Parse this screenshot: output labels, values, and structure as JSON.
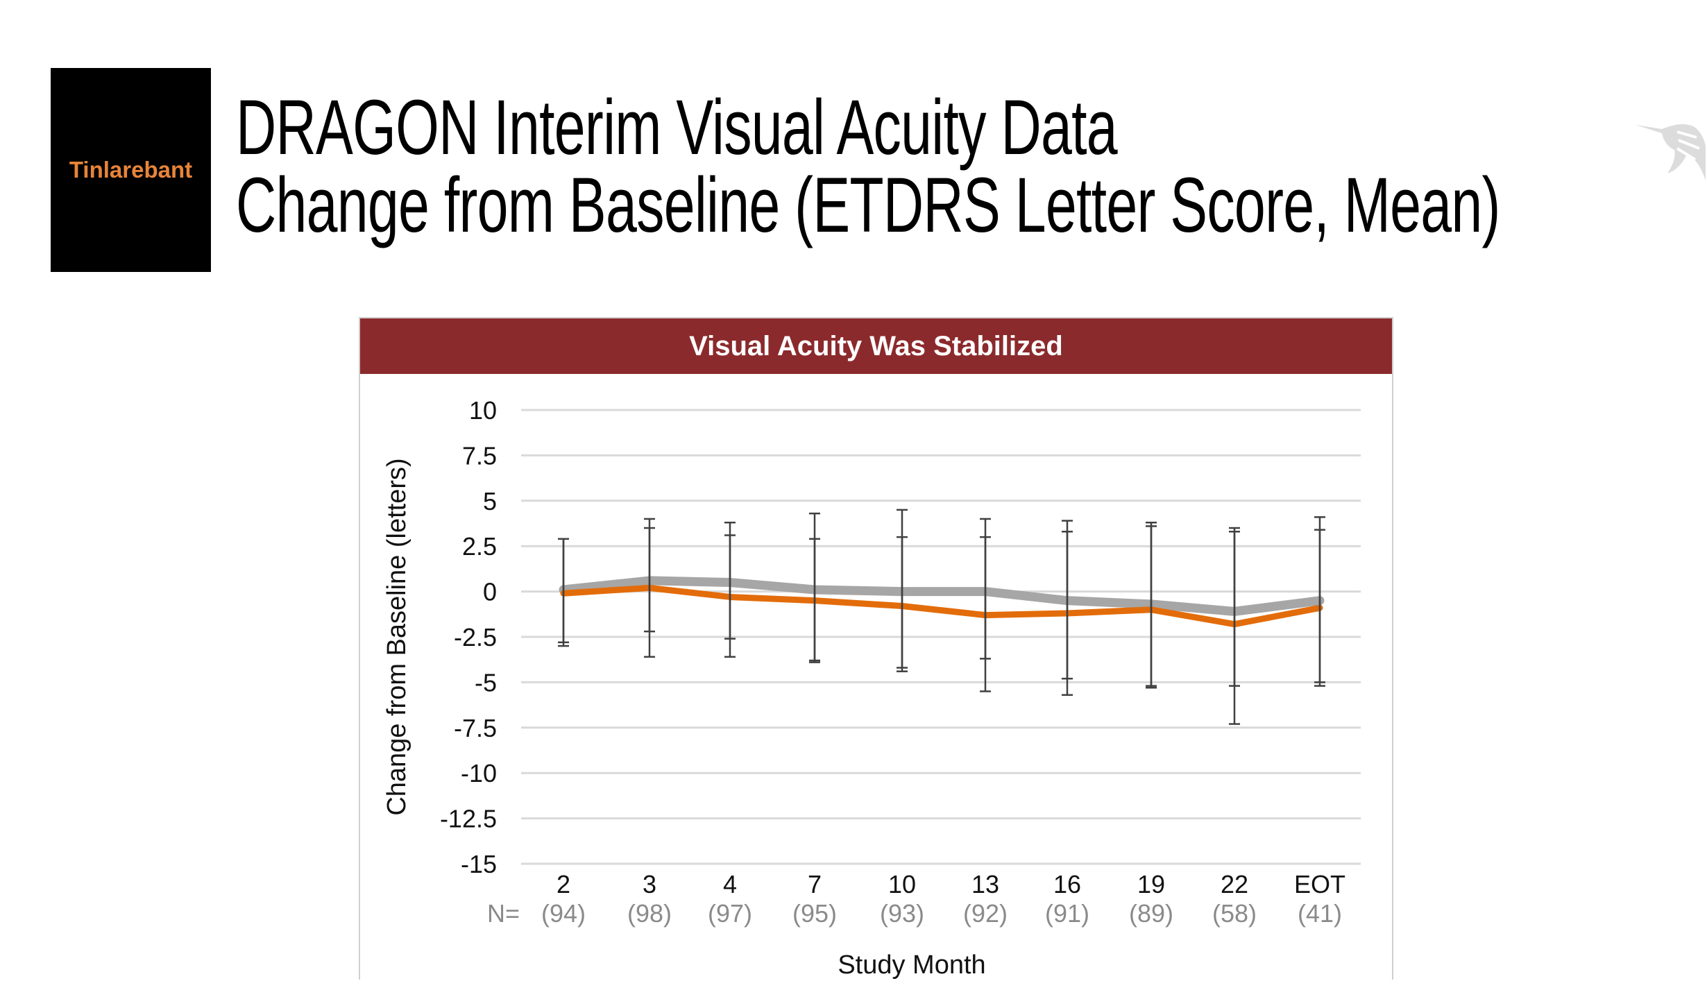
{
  "brand": {
    "label": "Tinlarebant"
  },
  "slide": {
    "title_line1": "DRAGON Interim Visual Acuity Data",
    "title_line2": "Change from Baseline (ETDRS Letter Score, Mean)"
  },
  "icons": {
    "logo": "hummingbird-icon"
  },
  "chart_data": {
    "type": "line",
    "title": "Visual Acuity Was Stabilized",
    "header_color": "#8b2a2c",
    "xlabel": "Study Month",
    "ylabel": "Change from Baseline (letters)",
    "ylim": [
      -15,
      10
    ],
    "yticks": [
      10,
      7.5,
      5,
      2.5,
      0,
      -2.5,
      -5,
      -7.5,
      -10,
      -12.5,
      -15
    ],
    "ytick_labels": [
      "10",
      "7.5",
      "5",
      "2.5",
      "0",
      "-2.5",
      "-5",
      "-7.5",
      "-10",
      "-12.5",
      "-15"
    ],
    "grid": true,
    "categories": [
      "2",
      "3",
      "4",
      "7",
      "10",
      "13",
      "16",
      "19",
      "22",
      "EOT"
    ],
    "n_prefix": "N=",
    "n_labels": [
      "(94)",
      "(98)",
      "(97)",
      "(95)",
      "(93)",
      "(92)",
      "(91)",
      "(89)",
      "(58)",
      "(41)"
    ],
    "series": [
      {
        "color": "#a6a6a6",
        "values": [
          0.1,
          0.6,
          0.5,
          0.1,
          0.0,
          0.0,
          -0.5,
          -0.7,
          -1.1,
          -0.5
        ],
        "err_low": [
          -2.8,
          -2.2,
          -2.6,
          -3.8,
          -4.2,
          -3.7,
          -4.8,
          -5.2,
          -5.2,
          -5.0
        ],
        "err_high": [
          2.9,
          3.5,
          3.1,
          2.9,
          3.0,
          3.0,
          3.3,
          3.6,
          3.3,
          3.4
        ]
      },
      {
        "color": "#e36c0a",
        "values": [
          -0.1,
          0.2,
          -0.3,
          -0.5,
          -0.8,
          -1.3,
          -1.2,
          -1.0,
          -1.8,
          -0.9
        ],
        "err_low": [
          -3.0,
          -3.6,
          -3.6,
          -3.9,
          -4.4,
          -5.5,
          -5.7,
          -5.3,
          -7.3,
          -5.2
        ],
        "err_high": [
          2.9,
          4.0,
          3.8,
          4.3,
          4.5,
          4.0,
          3.9,
          3.8,
          3.5,
          4.1
        ]
      }
    ]
  }
}
